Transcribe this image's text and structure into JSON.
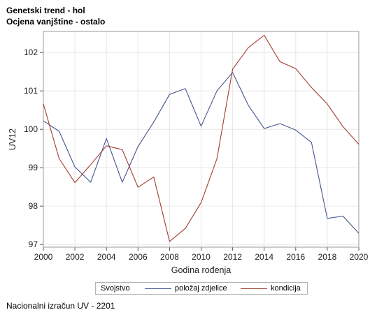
{
  "titles": {
    "line1": "Genetski trend - hol",
    "line2": "Ocjena vanjštine - ostalo"
  },
  "chart_data": {
    "type": "line",
    "xlabel": "Godina rođenja",
    "ylabel": "UV12",
    "x": [
      2000,
      2001,
      2002,
      2003,
      2004,
      2005,
      2006,
      2007,
      2008,
      2009,
      2010,
      2011,
      2012,
      2013,
      2014,
      2015,
      2016,
      2017,
      2018,
      2019,
      2020
    ],
    "xlim": [
      2000,
      2020
    ],
    "ylim": [
      96.93,
      102.55
    ],
    "x_ticks": [
      "2000",
      "2002",
      "2004",
      "2006",
      "2008",
      "2010",
      "2012",
      "2014",
      "2016",
      "2018",
      "2020"
    ],
    "y_ticks": [
      "97",
      "98",
      "99",
      "100",
      "101",
      "102"
    ],
    "grid": true,
    "legend_position": "bottom",
    "series": [
      {
        "name": "položaj zdjelice",
        "color": "#44548f",
        "values": [
          100.22,
          99.95,
          99.02,
          98.62,
          99.76,
          98.62,
          99.55,
          100.19,
          100.91,
          101.06,
          100.08,
          101.0,
          101.48,
          100.62,
          100.02,
          100.15,
          99.98,
          99.66,
          97.68,
          97.74,
          97.29
        ]
      },
      {
        "name": "kondicija",
        "color": "#a23a2e",
        "values": [
          100.66,
          99.24,
          98.61,
          99.08,
          99.57,
          99.47,
          98.49,
          98.76,
          97.08,
          97.42,
          98.09,
          99.23,
          101.57,
          102.13,
          102.45,
          101.76,
          101.58,
          101.09,
          100.66,
          100.07,
          99.61
        ]
      }
    ]
  },
  "legend": {
    "title": "Svojstvo",
    "items": [
      "položaj zdjelice",
      "kondicija"
    ]
  },
  "footnote": "Nacionalni izračun UV - 2201"
}
